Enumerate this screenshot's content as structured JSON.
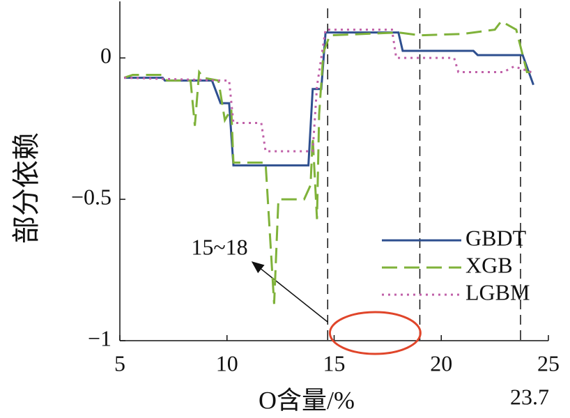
{
  "chart_data": {
    "type": "line",
    "x_label": "O含量/%",
    "y_label": "部分依赖",
    "xlim": [
      5,
      25
    ],
    "xticks": [
      5,
      10,
      15,
      20,
      25
    ],
    "ylim": [
      -1,
      0.2
    ],
    "yticks": [
      {
        "value": 0,
        "label": "0"
      },
      {
        "value": -0.5,
        "label": "−0.5"
      },
      {
        "value": -1,
        "label": "−1"
      }
    ],
    "grid": false,
    "legend": "lower right",
    "vlines": [
      14.7,
      19,
      23.7
    ],
    "annotations": [
      "15~18",
      "23.7"
    ],
    "series": [
      {
        "name": "GBDT",
        "color": "#2e4f8f",
        "dash": "solid",
        "x": [
          5.2,
          7.0,
          7.1,
          9.3,
          9.7,
          10.1,
          10.3,
          13.8,
          14.0,
          14.4,
          14.6,
          18.0,
          18.2,
          21.5,
          21.7,
          23.8,
          24.3
        ],
        "values": [
          -0.07,
          -0.07,
          -0.08,
          -0.08,
          -0.16,
          -0.16,
          -0.38,
          -0.38,
          -0.11,
          -0.11,
          0.09,
          0.09,
          0.025,
          0.025,
          0.01,
          0.01,
          -0.095
        ]
      },
      {
        "name": "XGB",
        "color": "#7fb23a",
        "dash": "dashed",
        "x": [
          5.2,
          5.6,
          7.0,
          7.2,
          8.3,
          8.5,
          8.7,
          8.9,
          9.6,
          9.9,
          10.2,
          10.3,
          11.8,
          12.2,
          12.4,
          13.6,
          13.9,
          14.0,
          14.2,
          14.3,
          14.5,
          14.8,
          18.0,
          19.0,
          21.0,
          22.5,
          22.8,
          23.5,
          24.0,
          24.3
        ],
        "values": [
          -0.07,
          -0.06,
          -0.06,
          -0.08,
          -0.08,
          -0.24,
          -0.05,
          -0.07,
          -0.08,
          -0.22,
          -0.18,
          -0.37,
          -0.37,
          -0.87,
          -0.5,
          -0.5,
          -0.45,
          -0.28,
          -0.57,
          -0.2,
          0.02,
          0.08,
          0.09,
          0.08,
          0.085,
          0.1,
          0.13,
          0.1,
          -0.05,
          -0.05
        ]
      },
      {
        "name": "LGBM",
        "color": "#c060a8",
        "dash": "dotted",
        "x": [
          5.2,
          9.8,
          10.1,
          10.3,
          11.6,
          11.8,
          14.0,
          14.2,
          14.6,
          17.7,
          17.9,
          20.6,
          20.8,
          22.9,
          23.4,
          24.2
        ],
        "values": [
          -0.07,
          -0.08,
          -0.08,
          -0.23,
          -0.23,
          -0.33,
          -0.33,
          -0.1,
          0.1,
          0.1,
          0.0,
          0.0,
          -0.05,
          -0.05,
          -0.03,
          -0.05
        ]
      }
    ]
  }
}
